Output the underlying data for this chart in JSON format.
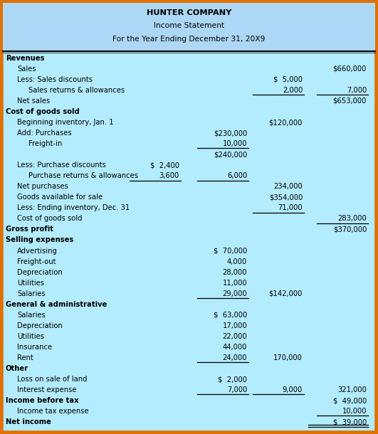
{
  "title_line1": "HUNTER COMPANY",
  "title_line2": "Income Statement",
  "title_line3": "For the Year Ending December 31, 20X9",
  "bg_color": "#b3ecff",
  "title_bg": "#add8f5",
  "border_color": "#e07000",
  "rows": [
    {
      "text": "Revenues",
      "indent": 0,
      "bold": true,
      "c1": "",
      "c2": "",
      "c3": "",
      "c4": "",
      "ul": []
    },
    {
      "text": "Sales",
      "indent": 1,
      "bold": false,
      "c1": "",
      "c2": "",
      "c3": "",
      "c4": "$660,000",
      "ul": []
    },
    {
      "text": "Less: Sales discounts",
      "indent": 1,
      "bold": false,
      "c1": "",
      "c2": "",
      "c3": "$  5,000",
      "c4": "",
      "ul": []
    },
    {
      "text": "Sales returns & allowances",
      "indent": 2,
      "bold": false,
      "c1": "",
      "c2": "",
      "c3": "2,000",
      "c4": "7,000",
      "ul": [
        "c3",
        "c4"
      ]
    },
    {
      "text": "Net sales",
      "indent": 1,
      "bold": false,
      "c1": "",
      "c2": "",
      "c3": "",
      "c4": "$653,000",
      "ul": []
    },
    {
      "text": "Cost of goods sold",
      "indent": 0,
      "bold": true,
      "c1": "",
      "c2": "",
      "c3": "",
      "c4": "",
      "ul": []
    },
    {
      "text": "Beginning inventory, Jan. 1",
      "indent": 1,
      "bold": false,
      "c1": "",
      "c2": "",
      "c3": "$120,000",
      "c4": "",
      "ul": []
    },
    {
      "text": "Add: Purchases",
      "indent": 1,
      "bold": false,
      "c1": "",
      "c2": "$230,000",
      "c3": "",
      "c4": "",
      "ul": []
    },
    {
      "text": "Freight-in",
      "indent": 2,
      "bold": false,
      "c1": "",
      "c2": "10,000",
      "c3": "",
      "c4": "",
      "ul": [
        "c2"
      ]
    },
    {
      "text": "",
      "indent": 2,
      "bold": false,
      "c1": "",
      "c2": "$240,000",
      "c3": "",
      "c4": "",
      "ul": []
    },
    {
      "text": "Less: Purchase discounts",
      "indent": 1,
      "bold": false,
      "c1": "$  2,400",
      "c2": "",
      "c3": "",
      "c4": "",
      "ul": []
    },
    {
      "text": "Purchase returns & allowances",
      "indent": 2,
      "bold": false,
      "c1": "3,600",
      "c2": "6,000",
      "c3": "",
      "c4": "",
      "ul": [
        "c1",
        "c2"
      ]
    },
    {
      "text": "Net purchases",
      "indent": 1,
      "bold": false,
      "c1": "",
      "c2": "",
      "c3": "234,000",
      "c4": "",
      "ul": []
    },
    {
      "text": "Goods available for sale",
      "indent": 1,
      "bold": false,
      "c1": "",
      "c2": "",
      "c3": "$354,000",
      "c4": "",
      "ul": []
    },
    {
      "text": "Less: Ending inventory, Dec. 31",
      "indent": 1,
      "bold": false,
      "c1": "",
      "c2": "",
      "c3": "71,000",
      "c4": "",
      "ul": [
        "c3"
      ]
    },
    {
      "text": "Cost of goods sold",
      "indent": 1,
      "bold": false,
      "c1": "",
      "c2": "",
      "c3": "",
      "c4": "283,000",
      "ul": [
        "c4"
      ]
    },
    {
      "text": "Gross profit",
      "indent": 0,
      "bold": true,
      "c1": "",
      "c2": "",
      "c3": "",
      "c4": "$370,000",
      "ul": []
    },
    {
      "text": "Selling expenses",
      "indent": 0,
      "bold": true,
      "c1": "",
      "c2": "",
      "c3": "",
      "c4": "",
      "ul": []
    },
    {
      "text": "Advertising",
      "indent": 1,
      "bold": false,
      "c1": "",
      "c2": "$  70,000",
      "c3": "",
      "c4": "",
      "ul": []
    },
    {
      "text": "Freight-out",
      "indent": 1,
      "bold": false,
      "c1": "",
      "c2": "4,000",
      "c3": "",
      "c4": "",
      "ul": []
    },
    {
      "text": "Depreciation",
      "indent": 1,
      "bold": false,
      "c1": "",
      "c2": "28,000",
      "c3": "",
      "c4": "",
      "ul": []
    },
    {
      "text": "Utilities",
      "indent": 1,
      "bold": false,
      "c1": "",
      "c2": "11,000",
      "c3": "",
      "c4": "",
      "ul": []
    },
    {
      "text": "Salaries",
      "indent": 1,
      "bold": false,
      "c1": "",
      "c2": "29,000",
      "c3": "$142,000",
      "c4": "",
      "ul": [
        "c2"
      ]
    },
    {
      "text": "General & administrative",
      "indent": 0,
      "bold": true,
      "c1": "",
      "c2": "",
      "c3": "",
      "c4": "",
      "ul": []
    },
    {
      "text": "Salaries",
      "indent": 1,
      "bold": false,
      "c1": "",
      "c2": "$  63,000",
      "c3": "",
      "c4": "",
      "ul": []
    },
    {
      "text": "Depreciation",
      "indent": 1,
      "bold": false,
      "c1": "",
      "c2": "17,000",
      "c3": "",
      "c4": "",
      "ul": []
    },
    {
      "text": "Utilities",
      "indent": 1,
      "bold": false,
      "c1": "",
      "c2": "22,000",
      "c3": "",
      "c4": "",
      "ul": []
    },
    {
      "text": "Insurance",
      "indent": 1,
      "bold": false,
      "c1": "",
      "c2": "44,000",
      "c3": "",
      "c4": "",
      "ul": []
    },
    {
      "text": "Rent",
      "indent": 1,
      "bold": false,
      "c1": "",
      "c2": "24,000",
      "c3": "170,000",
      "c4": "",
      "ul": [
        "c2"
      ]
    },
    {
      "text": "Other",
      "indent": 0,
      "bold": true,
      "c1": "",
      "c2": "",
      "c3": "",
      "c4": "",
      "ul": []
    },
    {
      "text": "Loss on sale of land",
      "indent": 1,
      "bold": false,
      "c1": "",
      "c2": "$  2,000",
      "c3": "",
      "c4": "",
      "ul": []
    },
    {
      "text": "Interest expense",
      "indent": 1,
      "bold": false,
      "c1": "",
      "c2": "7,000",
      "c3": "9,000",
      "c4": "321,000",
      "ul": [
        "c2",
        "c3"
      ]
    },
    {
      "text": "Income before tax",
      "indent": 0,
      "bold": true,
      "c1": "",
      "c2": "",
      "c3": "",
      "c4": "$  49,000",
      "ul": []
    },
    {
      "text": "Income tax expense",
      "indent": 1,
      "bold": false,
      "c1": "",
      "c2": "",
      "c3": "",
      "c4": "10,000",
      "ul": [
        "c4"
      ]
    },
    {
      "text": "Net income",
      "indent": 0,
      "bold": true,
      "c1": "",
      "c2": "",
      "c3": "",
      "c4": "$  39,000",
      "ul": [
        "double_c4"
      ]
    }
  ],
  "font_size": 7.2,
  "title_font_size": 8.2
}
